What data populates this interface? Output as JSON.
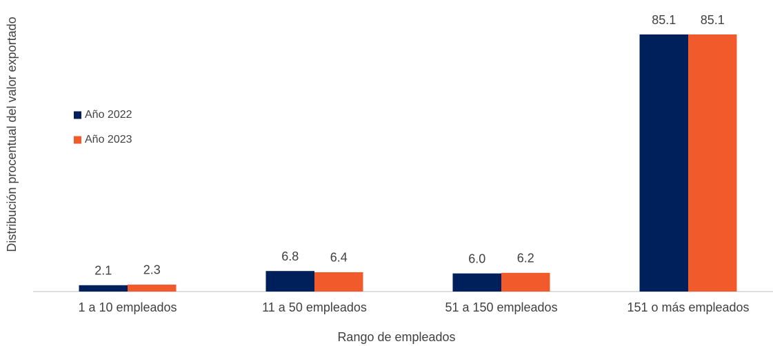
{
  "chart_data": {
    "type": "bar",
    "x_label": "Rango de empleados",
    "y_label": "Distribución procentual del valor exportado",
    "categories": [
      "1 a 10 empleados",
      "11 a 50 empleados",
      "51 a 150 empleados",
      "151 o más empleados"
    ],
    "series": [
      {
        "name": "Año 2022",
        "color": "#00205b",
        "values": [
          2.1,
          6.8,
          6.0,
          85.1
        ],
        "value_labels": [
          "2.1",
          "6.8",
          "6.0",
          "85.1"
        ]
      },
      {
        "name": "Año 2023",
        "color": "#f15a2b",
        "values": [
          2.3,
          6.4,
          6.2,
          85.1
        ],
        "value_labels": [
          "2.3",
          "6.4",
          "6.2",
          "85.1"
        ]
      }
    ]
  }
}
